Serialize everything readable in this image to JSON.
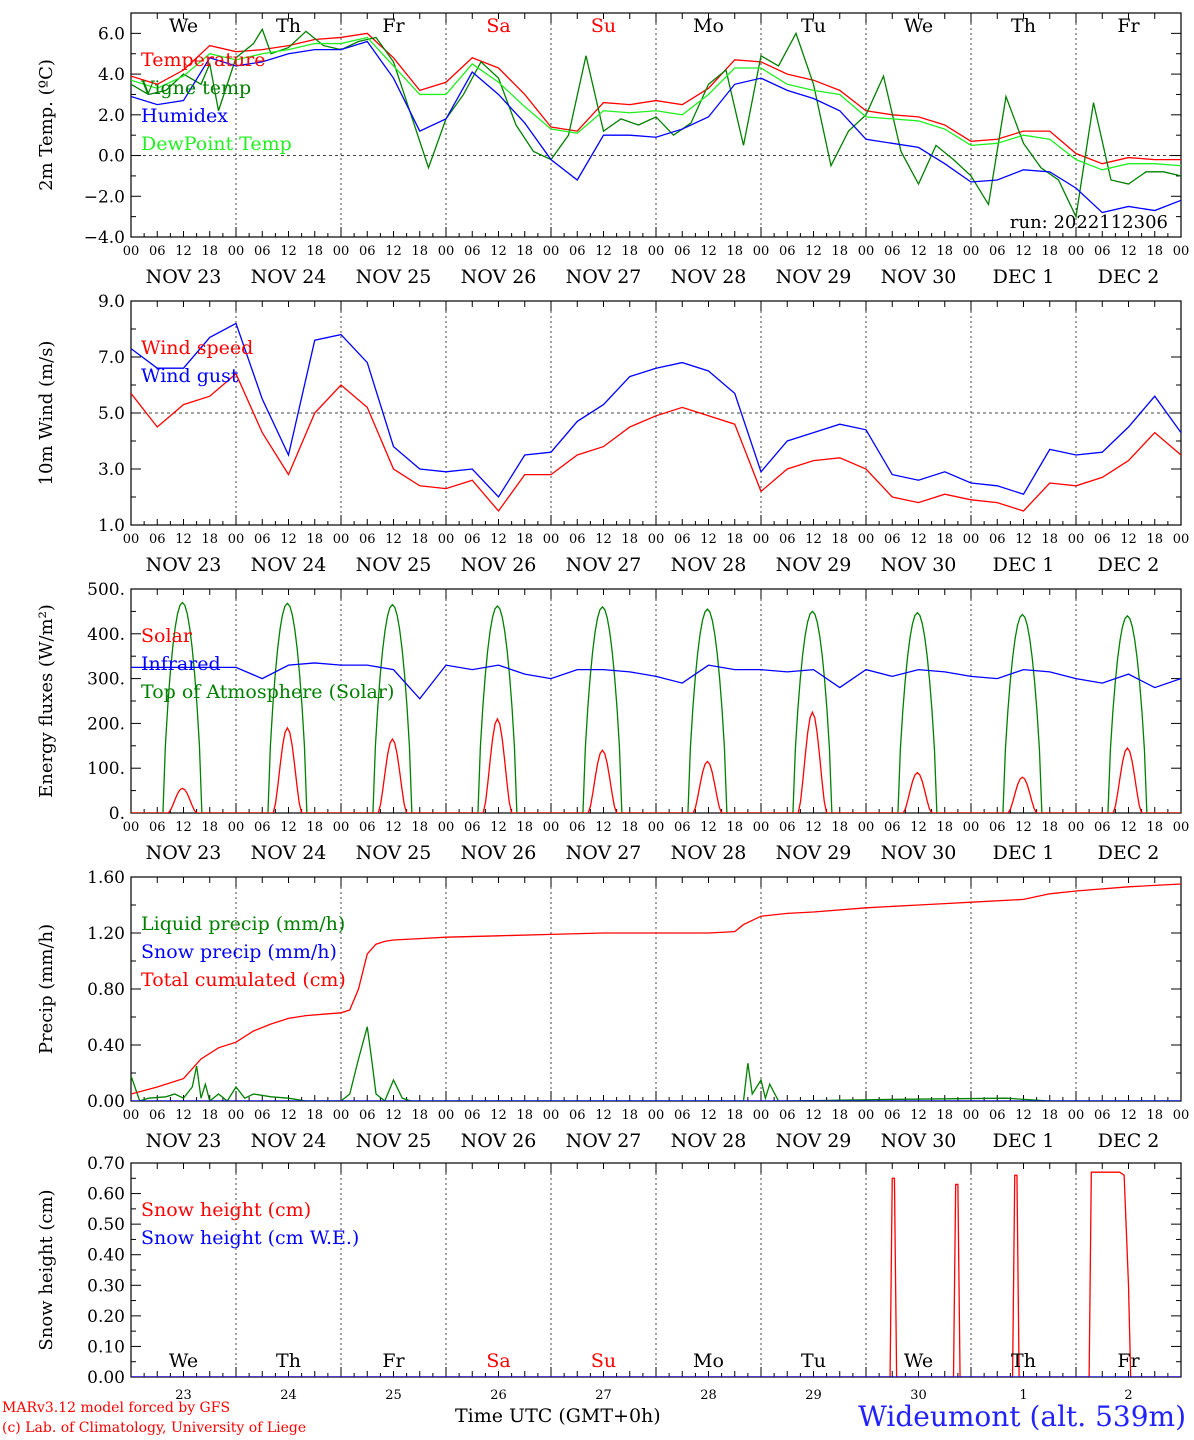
{
  "run_label": "run: 2022112306",
  "credits": [
    "MARv3.12 model forced by GFS",
    "(c) Lab. of Climatology, University of Liege"
  ],
  "time_axis_label": "Time UTC (GMT+0h)",
  "station": "Wideumont (alt. 539m)",
  "weekdays": [
    "We",
    "Th",
    "Fr",
    "Sa",
    "Su",
    "Mo",
    "Tu",
    "We",
    "Th",
    "Fr"
  ],
  "weekend_days": [
    "Sa",
    "Su"
  ],
  "dates": [
    "NOV 23",
    "NOV 24",
    "NOV 25",
    "NOV 26",
    "NOV 27",
    "NOV 28",
    "NOV 29",
    "NOV 30",
    "DEC  1",
    "DEC  2"
  ],
  "day_numbers": [
    "23",
    "24",
    "25",
    "26",
    "27",
    "28",
    "29",
    "30",
    "1",
    "2"
  ],
  "hour_ticks": [
    "00",
    "06",
    "12",
    "18"
  ],
  "colors": {
    "red": "#ff0000",
    "green": "#008000",
    "blue": "#0000ff",
    "lightgreen": "#22ee22",
    "grid": "#444444"
  },
  "chart_data": [
    {
      "type": "line",
      "ylabel": "2m Temp. (ºC)",
      "ylim": [
        -4,
        7
      ],
      "yticks": [
        "6.0",
        "4.0",
        "2.0",
        "0.0",
        "−2.0",
        "−4.0"
      ],
      "ytick_values": [
        6,
        4,
        2,
        0,
        -2,
        -4
      ],
      "x_unit": "hours since NOV 23 00 UTC",
      "dashed_y": [
        0
      ],
      "legend": "top-left",
      "series": [
        {
          "name": "Temperature",
          "color": "red",
          "x": [
            0,
            6,
            12,
            18,
            24,
            30,
            36,
            42,
            48,
            54,
            60,
            66,
            72,
            78,
            84,
            90,
            96,
            102,
            108,
            114,
            120,
            126,
            132,
            138,
            144,
            150,
            156,
            162,
            168,
            174,
            180,
            186,
            192,
            198,
            204,
            210,
            216,
            222,
            228,
            234,
            240
          ],
          "y": [
            3.9,
            3.5,
            4.2,
            5.4,
            5.1,
            5.2,
            5.4,
            5.7,
            5.8,
            6.0,
            4.8,
            3.2,
            3.6,
            4.8,
            4.3,
            3.0,
            1.4,
            1.2,
            2.6,
            2.5,
            2.7,
            2.5,
            3.3,
            4.7,
            4.6,
            4.0,
            3.7,
            3.2,
            2.2,
            2.0,
            1.9,
            1.5,
            0.7,
            0.8,
            1.2,
            1.2,
            0.1,
            -0.4,
            -0.1,
            -0.2,
            -0.2
          ]
        },
        {
          "name": "Vigne temp",
          "color": "green",
          "x": [
            0,
            4,
            8,
            12,
            16,
            18,
            20,
            24,
            28,
            30,
            32,
            36,
            40,
            44,
            48,
            52,
            56,
            60,
            64,
            68,
            72,
            76,
            80,
            84,
            88,
            92,
            96,
            100,
            104,
            108,
            112,
            116,
            120,
            124,
            128,
            132,
            136,
            140,
            144,
            148,
            152,
            156,
            160,
            164,
            168,
            172,
            176,
            180,
            184,
            188,
            192,
            196,
            200,
            204,
            208,
            212,
            216,
            220,
            224,
            228,
            232,
            236,
            240
          ],
          "y": [
            3.5,
            3.0,
            3.2,
            4.0,
            3.5,
            4.5,
            2.2,
            4.8,
            5.5,
            6.2,
            5.0,
            5.3,
            6.1,
            5.4,
            5.2,
            5.6,
            5.8,
            4.6,
            2.0,
            -0.6,
            1.8,
            3.0,
            4.6,
            3.8,
            1.5,
            0.2,
            -0.2,
            1.0,
            4.9,
            1.2,
            1.8,
            1.5,
            1.9,
            1.0,
            1.6,
            3.5,
            4.2,
            0.5,
            4.9,
            4.4,
            6.0,
            3.5,
            -0.5,
            1.2,
            2.0,
            3.9,
            0.2,
            -1.4,
            0.5,
            -0.2,
            -1.0,
            -2.4,
            2.9,
            0.6,
            -0.6,
            -1.2,
            -3.0,
            2.6,
            -1.2,
            -1.4,
            -0.8,
            -0.8,
            -1.0
          ]
        },
        {
          "name": "Humidex",
          "color": "blue",
          "x": [
            0,
            6,
            12,
            18,
            24,
            30,
            36,
            42,
            48,
            54,
            60,
            66,
            72,
            78,
            84,
            90,
            96,
            102,
            108,
            114,
            120,
            126,
            132,
            138,
            144,
            150,
            156,
            162,
            168,
            174,
            180,
            186,
            192,
            198,
            204,
            210,
            216,
            222,
            228,
            234,
            240
          ],
          "y": [
            2.9,
            2.5,
            2.7,
            4.8,
            4.4,
            4.6,
            5.0,
            5.2,
            5.2,
            5.6,
            3.8,
            1.2,
            1.8,
            4.1,
            3.0,
            1.6,
            -0.2,
            -1.2,
            1.0,
            1.0,
            0.9,
            1.3,
            1.9,
            3.5,
            3.8,
            3.2,
            2.8,
            2.2,
            0.8,
            0.6,
            0.4,
            -0.4,
            -1.3,
            -1.2,
            -0.7,
            -0.8,
            -1.6,
            -2.8,
            -2.5,
            -2.7,
            -2.2
          ]
        },
        {
          "name": "DewPoint Temp",
          "color": "lightgreen",
          "x": [
            0,
            6,
            12,
            18,
            24,
            30,
            36,
            42,
            48,
            54,
            60,
            66,
            72,
            78,
            84,
            90,
            96,
            102,
            108,
            114,
            120,
            126,
            132,
            138,
            144,
            150,
            156,
            162,
            168,
            174,
            180,
            186,
            192,
            198,
            204,
            210,
            216,
            222,
            228,
            234,
            240
          ],
          "y": [
            3.7,
            3.3,
            3.9,
            5.0,
            4.7,
            5.0,
            5.2,
            5.5,
            5.5,
            5.8,
            4.4,
            3.0,
            3.0,
            4.5,
            3.6,
            2.4,
            1.3,
            1.1,
            2.2,
            2.1,
            2.2,
            2.0,
            3.0,
            4.3,
            4.3,
            3.5,
            3.2,
            3.0,
            1.9,
            1.8,
            1.7,
            1.3,
            0.5,
            0.6,
            1.0,
            0.8,
            -0.2,
            -0.7,
            -0.4,
            -0.4,
            -0.5
          ]
        }
      ]
    },
    {
      "type": "line",
      "ylabel": "10m Wind (m/s)",
      "ylim": [
        1,
        9
      ],
      "yticks": [
        "9.0",
        "7.0",
        "5.0",
        "3.0",
        "1.0"
      ],
      "ytick_values": [
        9,
        7,
        5,
        3,
        1
      ],
      "x_unit": "hours since NOV 23 00 UTC",
      "dashed_y": [
        5
      ],
      "legend": "top-left",
      "series": [
        {
          "name": "Wind speed",
          "color": "red",
          "x": [
            0,
            6,
            12,
            18,
            24,
            30,
            36,
            42,
            48,
            54,
            60,
            66,
            72,
            78,
            84,
            90,
            96,
            102,
            108,
            114,
            120,
            126,
            132,
            138,
            144,
            150,
            156,
            162,
            168,
            174,
            180,
            186,
            192,
            198,
            204,
            210,
            216,
            222,
            228,
            234,
            240
          ],
          "y": [
            5.7,
            4.5,
            5.3,
            5.6,
            6.4,
            4.3,
            2.8,
            5.0,
            6.0,
            5.2,
            3.0,
            2.4,
            2.3,
            2.6,
            1.5,
            2.8,
            2.8,
            3.5,
            3.8,
            4.5,
            4.9,
            5.2,
            4.9,
            4.6,
            2.2,
            3.0,
            3.3,
            3.4,
            3.0,
            2.0,
            1.8,
            2.1,
            1.9,
            1.8,
            1.5,
            2.5,
            2.4,
            2.7,
            3.3,
            4.3,
            3.5
          ]
        },
        {
          "name": "Wind gust",
          "color": "blue",
          "x": [
            0,
            6,
            12,
            18,
            24,
            30,
            36,
            42,
            48,
            54,
            60,
            66,
            72,
            78,
            84,
            90,
            96,
            102,
            108,
            114,
            120,
            126,
            132,
            138,
            144,
            150,
            156,
            162,
            168,
            174,
            180,
            186,
            192,
            198,
            204,
            210,
            216,
            222,
            228,
            234,
            240
          ],
          "y": [
            7.3,
            6.6,
            6.6,
            7.7,
            8.2,
            5.5,
            3.5,
            7.6,
            7.8,
            6.8,
            3.8,
            3.0,
            2.9,
            3.0,
            2.0,
            3.5,
            3.6,
            4.7,
            5.3,
            6.3,
            6.6,
            6.8,
            6.5,
            5.7,
            2.9,
            4.0,
            4.3,
            4.6,
            4.4,
            2.8,
            2.6,
            2.9,
            2.5,
            2.4,
            2.1,
            3.7,
            3.5,
            3.6,
            4.5,
            5.6,
            4.3
          ]
        }
      ]
    },
    {
      "type": "line",
      "ylabel": "Energy fluxes (W/m²)",
      "ylim": [
        0,
        500
      ],
      "yticks": [
        "500.",
        "400.",
        "300.",
        "200.",
        "100.",
        "0."
      ],
      "ytick_values": [
        500,
        400,
        300,
        200,
        100,
        0
      ],
      "x_unit": "hours since NOV 23 00 UTC",
      "legend": "top-left",
      "daily_peaks": {
        "toa": [
          470,
          468,
          465,
          462,
          460,
          455,
          450,
          447,
          443,
          440
        ],
        "solar": [
          55,
          190,
          165,
          210,
          140,
          115,
          225,
          90,
          80,
          145
        ]
      },
      "series": [
        {
          "name": "Solar",
          "color": "red"
        },
        {
          "name": "Infrared",
          "color": "blue",
          "x": [
            0,
            12,
            24,
            30,
            36,
            42,
            48,
            54,
            60,
            66,
            72,
            78,
            84,
            90,
            96,
            102,
            108,
            114,
            120,
            126,
            132,
            138,
            144,
            150,
            156,
            162,
            168,
            174,
            180,
            186,
            192,
            198,
            204,
            210,
            216,
            222,
            228,
            234,
            240
          ],
          "y": [
            325,
            325,
            325,
            300,
            330,
            335,
            330,
            330,
            320,
            255,
            330,
            320,
            330,
            310,
            300,
            320,
            320,
            315,
            305,
            290,
            330,
            320,
            320,
            315,
            320,
            280,
            320,
            305,
            320,
            315,
            305,
            300,
            320,
            315,
            300,
            290,
            310,
            280,
            300
          ]
        },
        {
          "name": "Top of Atmosphere (Solar)",
          "color": "green"
        }
      ]
    },
    {
      "type": "line",
      "ylabel": "Precip (mm/h)",
      "ylim": [
        0,
        1.6
      ],
      "yticks": [
        "1.60",
        "1.20",
        "0.80",
        "0.40",
        "0.00"
      ],
      "ytick_values": [
        1.6,
        1.2,
        0.8,
        0.4,
        0
      ],
      "x_unit": "hours since NOV 23 00 UTC",
      "legend": "top-left",
      "series": [
        {
          "name": "Liquid precip (mm/h)",
          "color": "green",
          "x": [
            0,
            2,
            4,
            8,
            10,
            12,
            14,
            15,
            16,
            17,
            18,
            20,
            22,
            24,
            26,
            28,
            32,
            36,
            40,
            44,
            48,
            50,
            52,
            54,
            55,
            56,
            58,
            60,
            62,
            64,
            66,
            70,
            140,
            141,
            142,
            144,
            145,
            146,
            148,
            150,
            170,
            200,
            210,
            240
          ],
          "y": [
            0.18,
            0.0,
            0.02,
            0.03,
            0.05,
            0.02,
            0.1,
            0.25,
            0.02,
            0.12,
            0.0,
            0.05,
            0.0,
            0.1,
            0.02,
            0.05,
            0.03,
            0.02,
            0.0,
            0.0,
            0.0,
            0.05,
            0.3,
            0.53,
            0.3,
            0.05,
            0.0,
            0.15,
            0.02,
            0.0,
            0.0,
            0.0,
            0.0,
            0.27,
            0.05,
            0.15,
            0.02,
            0.12,
            0.0,
            0.0,
            0.01,
            0.02,
            0.0,
            0.0
          ]
        },
        {
          "name": "Snow precip (mm/h)",
          "color": "blue",
          "x": [
            0,
            240
          ],
          "y": [
            0,
            0
          ]
        },
        {
          "name": "Total cumulated (cm)",
          "color": "red",
          "x": [
            0,
            6,
            12,
            16,
            20,
            24,
            28,
            32,
            36,
            40,
            44,
            48,
            50,
            52,
            54,
            56,
            58,
            60,
            66,
            72,
            84,
            96,
            108,
            120,
            132,
            138,
            140,
            144,
            150,
            156,
            168,
            180,
            186,
            192,
            204,
            210,
            216,
            228,
            240
          ],
          "y": [
            0.05,
            0.1,
            0.16,
            0.3,
            0.38,
            0.42,
            0.5,
            0.55,
            0.59,
            0.61,
            0.62,
            0.63,
            0.65,
            0.8,
            1.05,
            1.12,
            1.14,
            1.15,
            1.16,
            1.17,
            1.18,
            1.19,
            1.2,
            1.2,
            1.2,
            1.21,
            1.26,
            1.32,
            1.34,
            1.35,
            1.38,
            1.4,
            1.41,
            1.42,
            1.44,
            1.48,
            1.5,
            1.53,
            1.55
          ]
        }
      ]
    },
    {
      "type": "line",
      "ylabel": "Snow height (cm)",
      "ylim": [
        0,
        0.7
      ],
      "yticks": [
        "0.70",
        "0.60",
        "0.50",
        "0.40",
        "0.30",
        "0.20",
        "0.10",
        "0.00"
      ],
      "ytick_values": [
        0.7,
        0.6,
        0.5,
        0.4,
        0.3,
        0.2,
        0.1,
        0
      ],
      "x_unit": "hours since NOV 23 00 UTC",
      "legend": "top-left",
      "series": [
        {
          "name": "Snow height (cm)",
          "color": "red",
          "x": [
            0,
            173.5,
            174,
            174.5,
            175,
            188,
            188.5,
            189,
            189.5,
            190,
            201.5,
            202,
            202.5,
            203,
            219,
            219.5,
            220,
            226,
            227,
            228,
            228.5,
            240
          ],
          "y": [
            0,
            0,
            0.65,
            0.65,
            0,
            0,
            0.63,
            0.63,
            0,
            0,
            0,
            0.66,
            0.66,
            0,
            0,
            0.67,
            0.67,
            0.67,
            0.66,
            0.3,
            0,
            0
          ]
        },
        {
          "name": "Snow height (cm W.E.)",
          "color": "blue",
          "x": [
            0,
            240
          ],
          "y": [
            0,
            0
          ]
        }
      ]
    }
  ]
}
